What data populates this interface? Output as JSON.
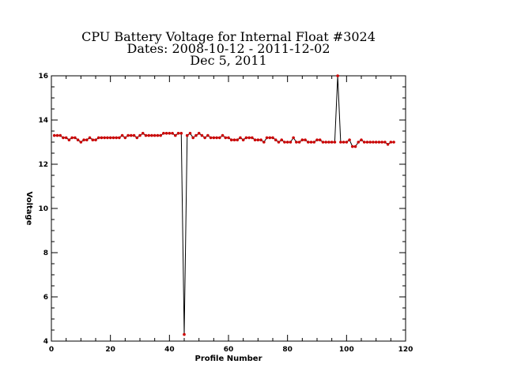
{
  "chart_data": {
    "type": "line",
    "title_lines": [
      "CPU Battery Voltage for Internal Float #3024",
      "Dates:  2008-10-12 -  2011-12-02",
      "Dec  5, 2011"
    ],
    "xlabel": "Profile Number",
    "ylabel": "Voltage",
    "xlim": [
      0,
      120
    ],
    "ylim": [
      4,
      16
    ],
    "x_ticks": [
      0,
      20,
      40,
      60,
      80,
      100,
      120
    ],
    "y_ticks": [
      4,
      6,
      8,
      10,
      12,
      14,
      16
    ],
    "grid": false,
    "line_color": "#000000",
    "marker_color": "#cc0000",
    "series": [
      {
        "x": [
          1,
          2,
          3,
          4,
          5,
          6,
          7,
          8,
          9,
          10,
          11,
          12,
          13,
          14,
          15,
          16,
          17,
          18,
          19,
          20,
          21,
          22,
          23,
          24,
          25,
          26,
          27,
          28,
          29,
          30,
          31,
          32,
          33,
          34,
          35,
          36,
          37,
          38,
          39,
          40,
          41,
          42,
          43,
          44,
          45,
          46,
          47,
          48,
          49,
          50,
          51,
          52,
          53,
          54,
          55,
          56,
          57,
          58,
          59,
          60,
          61,
          62,
          63,
          64,
          65,
          66,
          67,
          68,
          69,
          70,
          71,
          72,
          73,
          74,
          75,
          76,
          77,
          78,
          79,
          80,
          81,
          82,
          83,
          84,
          85,
          86,
          87,
          88,
          89,
          90,
          91,
          92,
          93,
          94,
          95,
          96,
          97,
          98,
          99,
          100,
          101,
          102,
          103,
          104,
          105,
          106,
          107,
          108,
          109,
          110,
          111,
          112,
          113,
          114,
          115,
          116
        ],
        "y": [
          13.3,
          13.3,
          13.3,
          13.2,
          13.2,
          13.1,
          13.2,
          13.2,
          13.1,
          13.0,
          13.1,
          13.1,
          13.2,
          13.1,
          13.1,
          13.2,
          13.2,
          13.2,
          13.2,
          13.2,
          13.2,
          13.2,
          13.2,
          13.3,
          13.2,
          13.3,
          13.3,
          13.3,
          13.2,
          13.3,
          13.4,
          13.3,
          13.3,
          13.3,
          13.3,
          13.3,
          13.3,
          13.4,
          13.4,
          13.4,
          13.4,
          13.3,
          13.4,
          13.4,
          4.3,
          13.3,
          13.4,
          13.2,
          13.3,
          13.4,
          13.3,
          13.2,
          13.3,
          13.2,
          13.2,
          13.2,
          13.2,
          13.3,
          13.2,
          13.2,
          13.1,
          13.1,
          13.1,
          13.2,
          13.1,
          13.2,
          13.2,
          13.2,
          13.1,
          13.1,
          13.1,
          13.0,
          13.2,
          13.2,
          13.2,
          13.1,
          13.0,
          13.1,
          13.0,
          13.0,
          13.0,
          13.2,
          13.0,
          13.0,
          13.1,
          13.1,
          13.0,
          13.0,
          13.0,
          13.1,
          13.1,
          13.0,
          13.0,
          13.0,
          13.0,
          13.0,
          16.0,
          13.0,
          13.0,
          13.0,
          13.1,
          12.8,
          12.8,
          13.0,
          13.1,
          13.0,
          13.0,
          13.0,
          13.0,
          13.0,
          13.0,
          13.0,
          13.0,
          12.9,
          13.0,
          13.0
        ]
      }
    ]
  }
}
